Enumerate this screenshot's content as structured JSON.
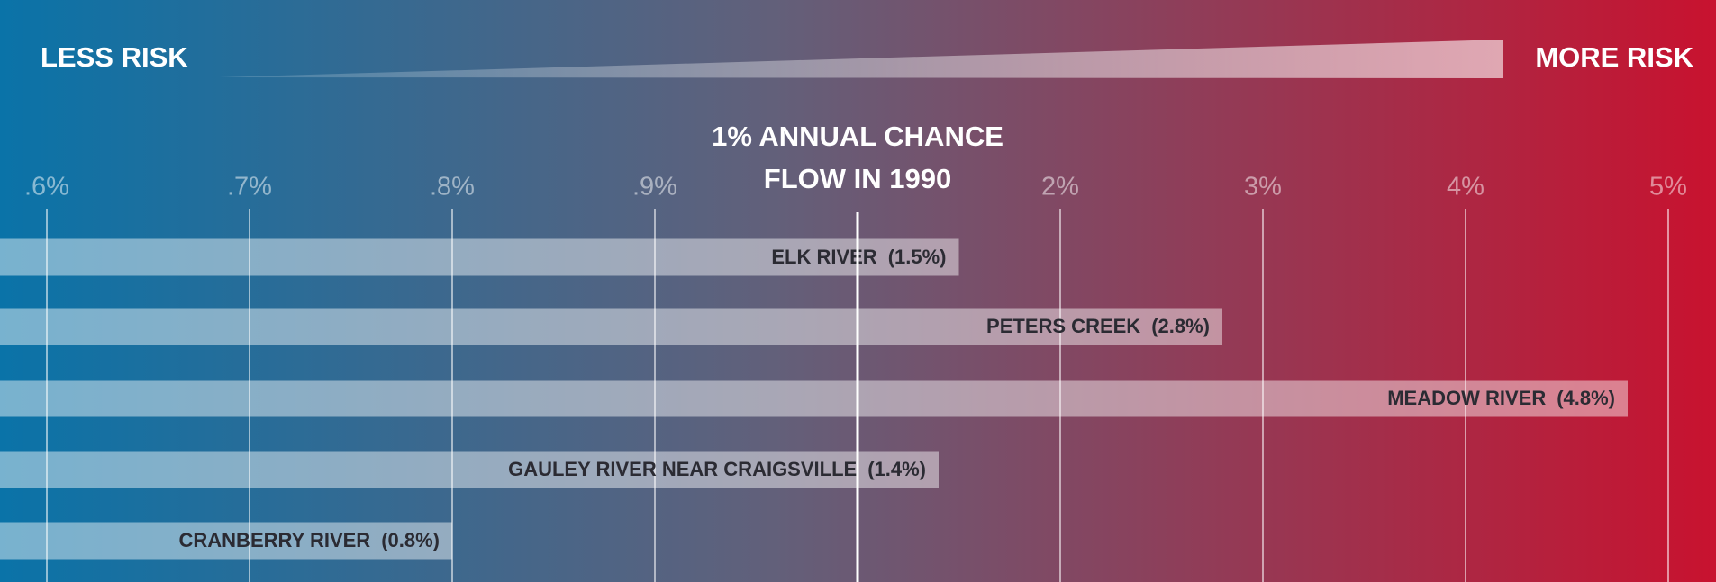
{
  "chart_data": {
    "type": "bar",
    "orientation": "horizontal",
    "annotations": {
      "left": "LESS RISK",
      "right": "MORE RISK"
    },
    "reference_line": {
      "value": 1,
      "label_lines": [
        "1% ANNUAL CHANCE",
        "FLOW IN 1990"
      ]
    },
    "categories": [
      "ELK RIVER",
      "PETERS CREEK",
      "MEADOW RIVER",
      "GAULEY RIVER NEAR CRAIGSVILLE",
      "CRANBERRY RIVER"
    ],
    "values": [
      1.5,
      2.8,
      4.8,
      1.4,
      0.8
    ],
    "value_labels": [
      "(1.5%)",
      "(2.8%)",
      "(4.8%)",
      "(1.4%)",
      "(0.8%)"
    ],
    "xticks": [
      {
        "value": 0.6,
        "label": ".6%"
      },
      {
        "value": 0.7,
        "label": ".7%"
      },
      {
        "value": 0.8,
        "label": ".8%"
      },
      {
        "value": 0.9,
        "label": ".9%"
      },
      {
        "value": 2,
        "label": "2%"
      },
      {
        "value": 3,
        "label": "3%"
      },
      {
        "value": 4,
        "label": "4%"
      },
      {
        "value": 5,
        "label": "5%"
      }
    ],
    "grid": true,
    "color": "#ffffff"
  }
}
